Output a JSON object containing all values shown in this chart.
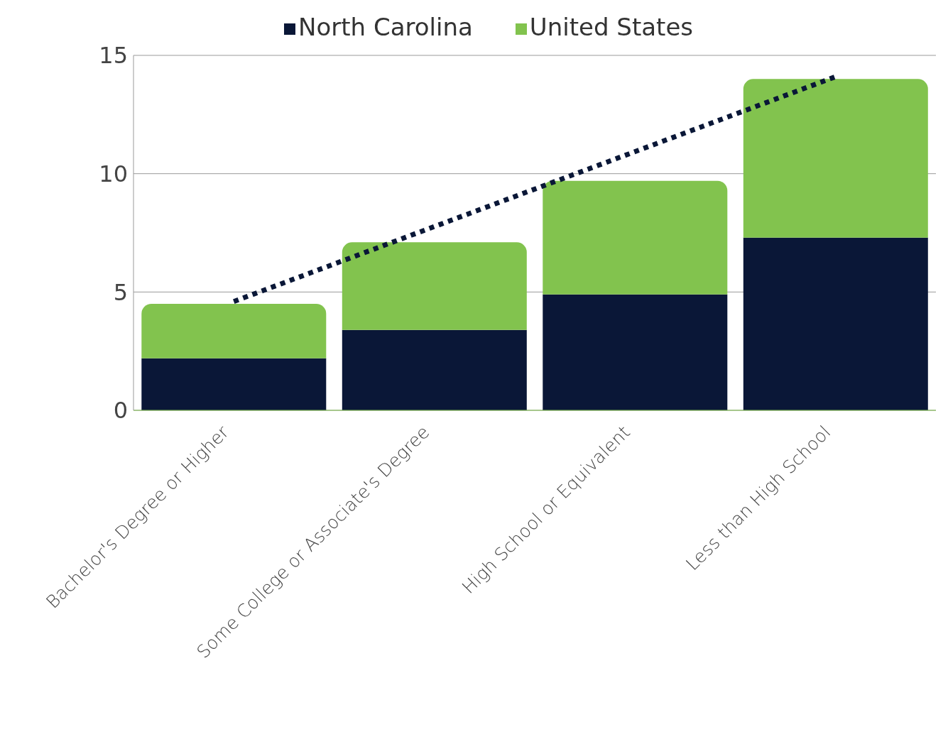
{
  "chart_data": {
    "type": "bar",
    "stacked": true,
    "categories": [
      "Bachelor's Degree or Higher",
      "Some College or Associate's Degree",
      "High School or Equivalent",
      "Less than High School"
    ],
    "series": [
      {
        "name": "North Carolina",
        "color": "#0a1737",
        "values": [
          2.2,
          3.4,
          4.9,
          7.3
        ]
      },
      {
        "name": "United States",
        "color": "#82c34e",
        "values": [
          2.3,
          3.7,
          4.8,
          6.7
        ]
      },
      {
        "type": "line",
        "color": "#0a1737",
        "line_style": "dotted",
        "marker": "none",
        "values": [
          4.6,
          null,
          null,
          14.1
        ]
      }
    ],
    "ylim": [
      0,
      15
    ],
    "yticks": [
      0,
      5,
      10,
      15
    ],
    "grid": "y",
    "legend": "top"
  }
}
